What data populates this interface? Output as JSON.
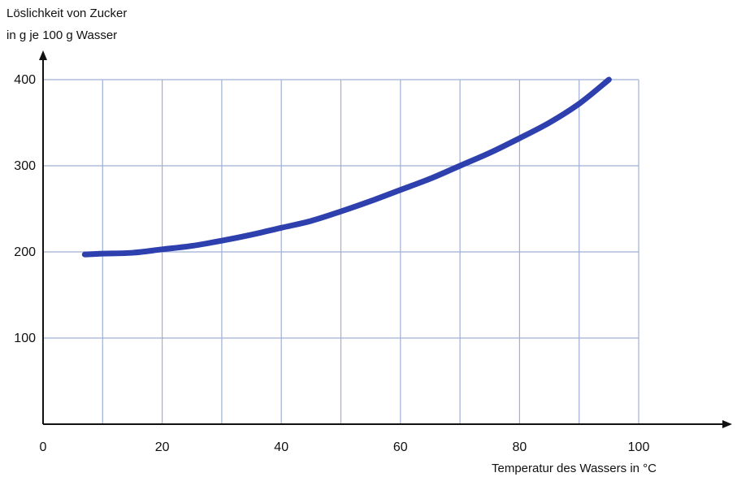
{
  "chart_data": {
    "type": "line",
    "ylabel_lines": [
      "Löslichkeit von Zucker",
      "in g je 100 g Wasser"
    ],
    "xlabel": "Temperatur des Wassers in °C",
    "xlim": [
      0,
      100
    ],
    "ylim": [
      0,
      400
    ],
    "x_ticks": [
      0,
      20,
      40,
      60,
      80,
      100
    ],
    "y_ticks": [
      100,
      200,
      300,
      400
    ],
    "x_grid_step": 10,
    "y_grid_step": 100,
    "grid": true,
    "series": [
      {
        "color": "#2e3fae",
        "points": [
          [
            7,
            197
          ],
          [
            10,
            198
          ],
          [
            15,
            199
          ],
          [
            20,
            203
          ],
          [
            25,
            207
          ],
          [
            30,
            213
          ],
          [
            35,
            220
          ],
          [
            40,
            228
          ],
          [
            45,
            236
          ],
          [
            50,
            247
          ],
          [
            55,
            259
          ],
          [
            60,
            272
          ],
          [
            65,
            285
          ],
          [
            70,
            300
          ],
          [
            75,
            315
          ],
          [
            80,
            332
          ],
          [
            85,
            350
          ],
          [
            90,
            372
          ],
          [
            95,
            400
          ]
        ]
      }
    ]
  },
  "colors": {
    "grid": "#9fb0d4",
    "axis": "#111111"
  }
}
